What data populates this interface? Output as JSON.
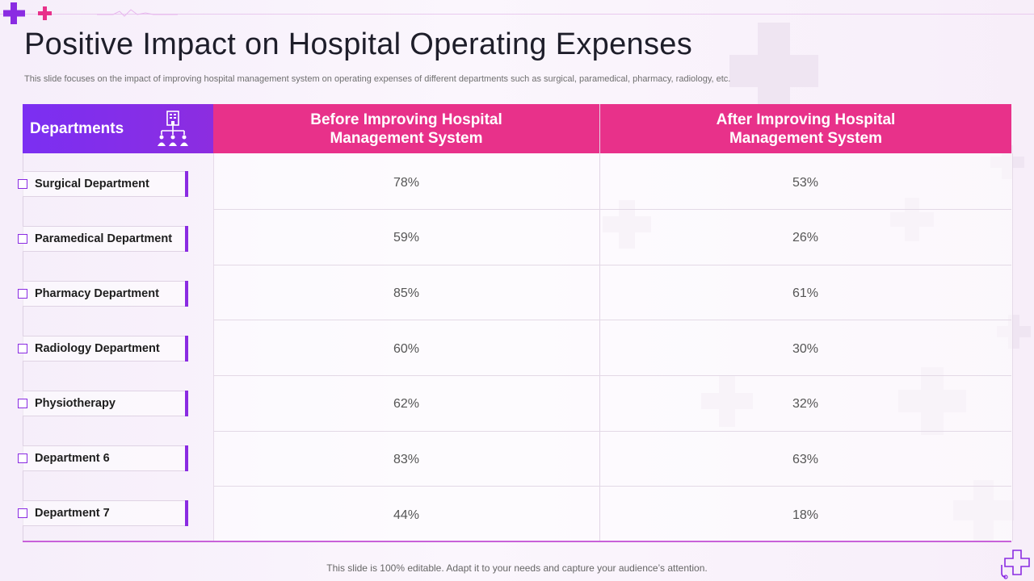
{
  "title": "Positive Impact on Hospital Operating Expenses",
  "subtitle": "This slide focuses on the impact of improving hospital management system on operating expenses of different departments such as surgical, paramedical, pharmacy, radiology, etc.",
  "table": {
    "departments_header": "Departments",
    "col_before": "Before Improving Hospital Management System",
    "col_after": "After Improving Hospital Management System",
    "rows": [
      {
        "department": "Surgical Department",
        "before": "78%",
        "after": "53%"
      },
      {
        "department": "Paramedical Department",
        "before": "59%",
        "after": "26%"
      },
      {
        "department": "Pharmacy Department",
        "before": "85%",
        "after": "61%"
      },
      {
        "department": "Radiology Department",
        "before": "60%",
        "after": "30%"
      },
      {
        "department": "Physiotherapy",
        "before": "62%",
        "after": "32%"
      },
      {
        "department": "Department 6",
        "before": "83%",
        "after": "63%"
      },
      {
        "department": "Department 7",
        "before": "44%",
        "after": "18%"
      }
    ]
  },
  "footer": "This slide is 100% editable. Adapt it to your needs and capture your audience’s attention.",
  "colors": {
    "purple": "#8a2be2",
    "pink": "#e8318a"
  },
  "icons": [
    "plus-icon",
    "org-chart-icon",
    "medical-cross-icon"
  ]
}
